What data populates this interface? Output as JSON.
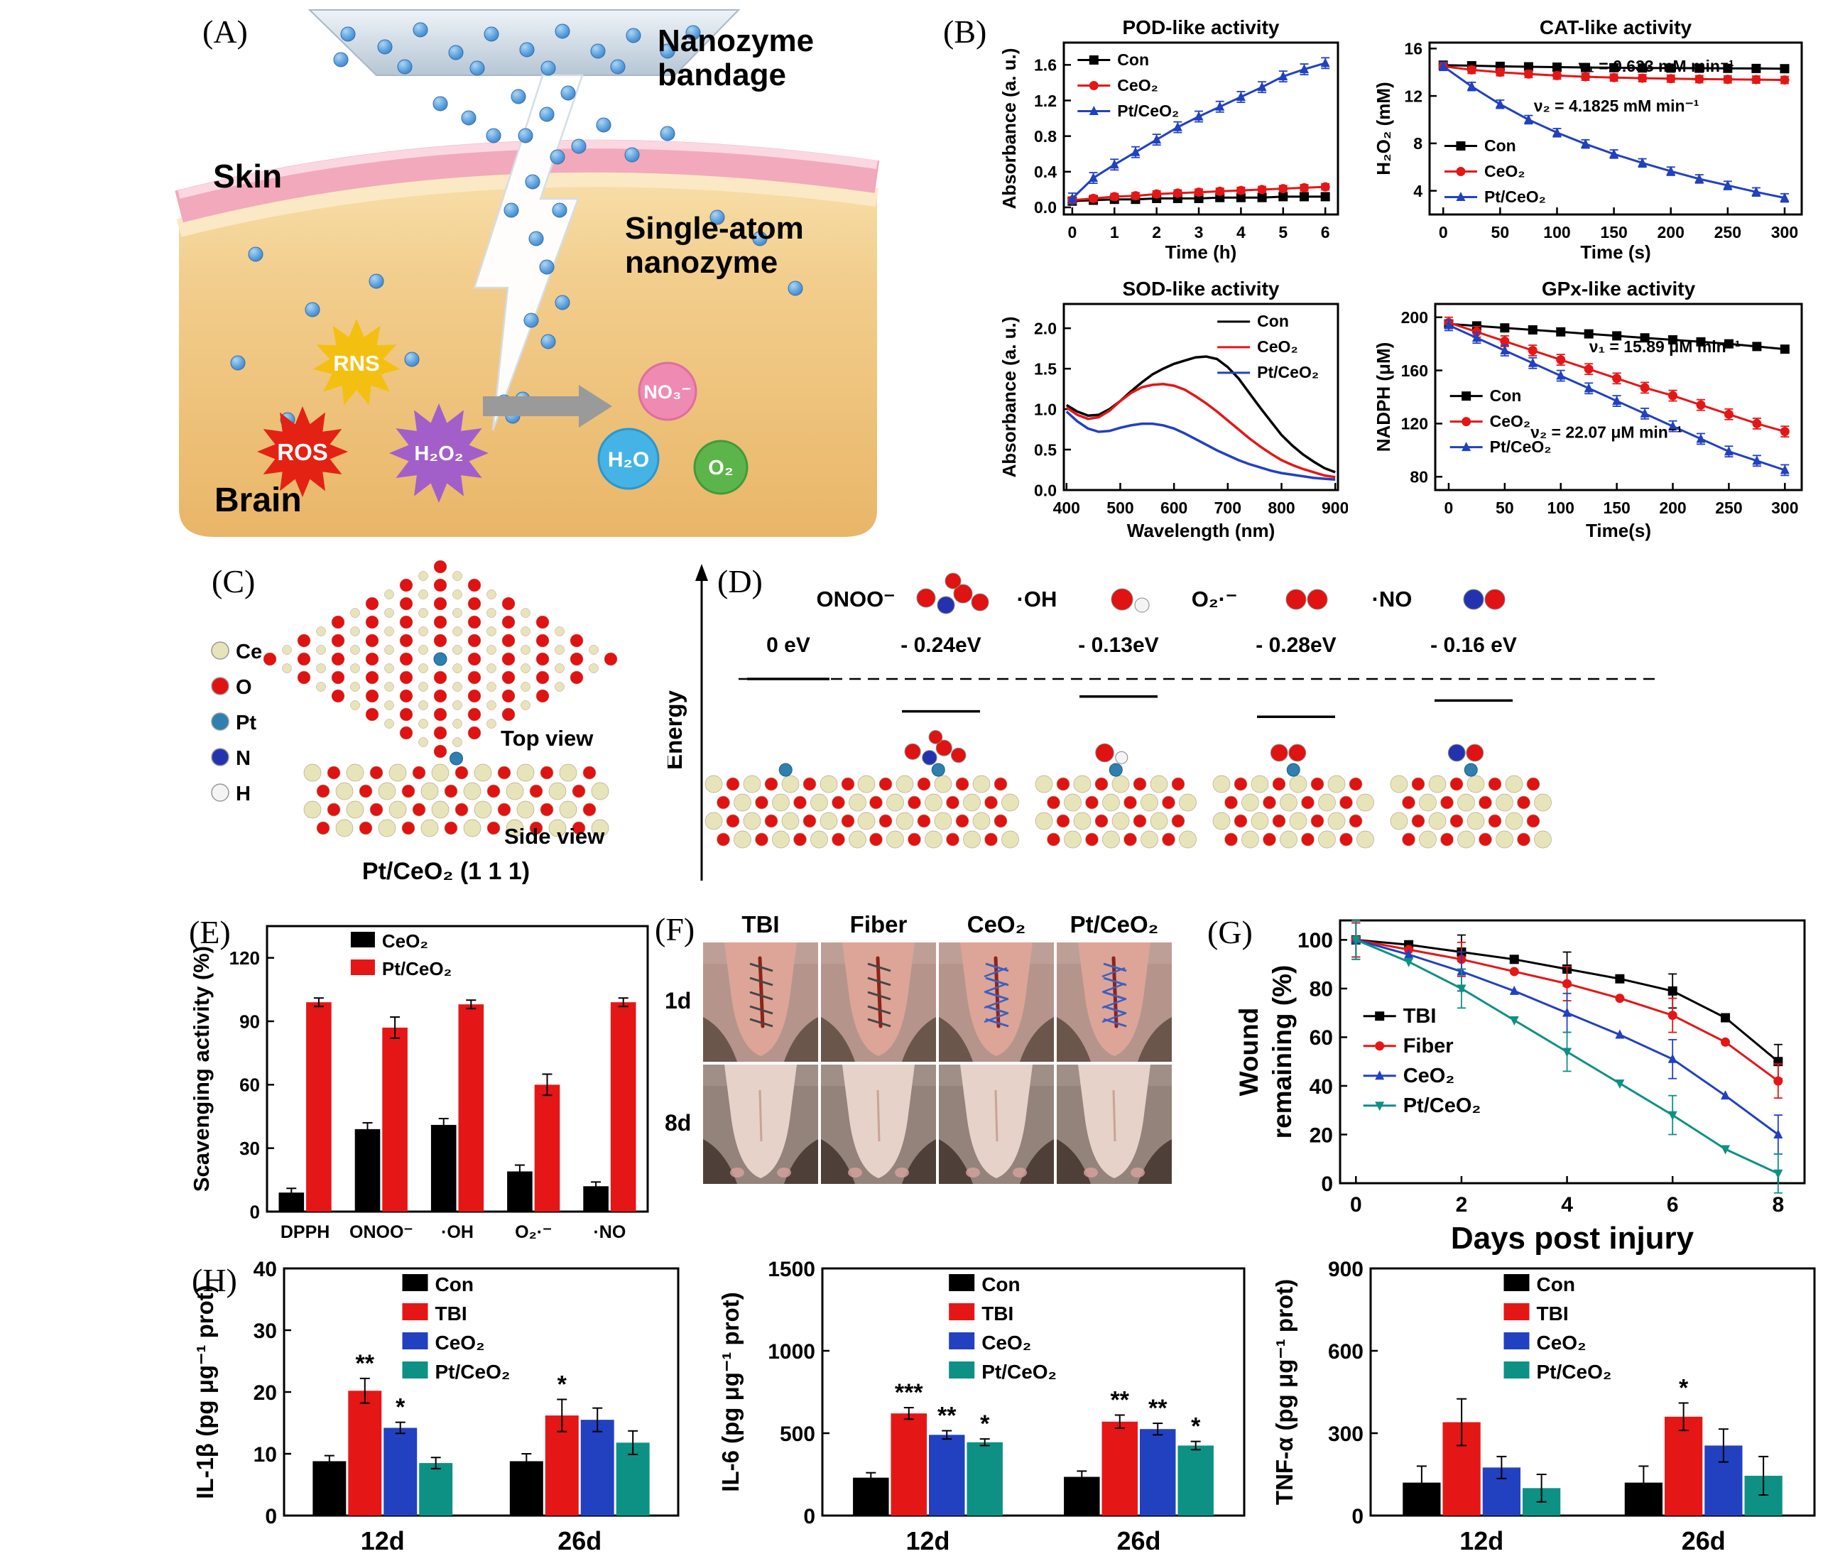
{
  "panels": {
    "a": {
      "label": "(A)",
      "bandage_line1": "Nanozyme",
      "bandage_line2": "bandage",
      "skin": "Skin",
      "single_atom_line1": "Single-atom",
      "single_atom_line2": "nanozyme",
      "brain": "Brain",
      "burst_rns": "RNS",
      "burst_ros": "ROS",
      "burst_h2o2": "H₂O₂",
      "product_no3": "NO₃⁻",
      "product_h2o": "H₂O",
      "product_o2": "O₂"
    },
    "b": {
      "label": "(B)"
    },
    "c": {
      "label": "(C)",
      "atoms": [
        {
          "name": "Ce",
          "color": "#e8e4ba"
        },
        {
          "name": "O",
          "color": "#e01212"
        },
        {
          "name": "Pt",
          "color": "#2f7fb0"
        },
        {
          "name": "N",
          "color": "#2333b0"
        },
        {
          "name": "H",
          "color": "#f4f4f4"
        }
      ],
      "top_view": "Top view",
      "side_view": "Side view",
      "caption": "Pt/CeO₂ (1 1 1)"
    },
    "d": {
      "label": "(D)",
      "energy_axis": "Energy",
      "baseline": "0 eV",
      "species": [
        {
          "label": "ONOO⁻",
          "energy": "- 0.24eV",
          "value": -0.24
        },
        {
          "label": "·OH",
          "energy": "- 0.13eV",
          "value": -0.13
        },
        {
          "label": "O₂·⁻",
          "energy": "- 0.28eV",
          "value": -0.28
        },
        {
          "label": "·NO",
          "energy": "- 0.16 eV",
          "value": -0.16
        }
      ]
    },
    "e": {
      "label": "(E)"
    },
    "f": {
      "label": "(F)",
      "columns": [
        "TBI",
        "Fiber",
        "CeO₂",
        "Pt/CeO₂"
      ],
      "rows": [
        "1d",
        "8d"
      ]
    },
    "g": {
      "label": "(G)"
    },
    "h": {
      "label": "(H)"
    }
  },
  "chart_data": [
    {
      "id": "pod",
      "type": "line",
      "title": "POD-like activity",
      "xlabel": "Time (h)",
      "ylabel": "Absorbance (a. u.)",
      "xlim": [
        -0.2,
        6.3
      ],
      "ylim": [
        -0.08,
        1.85
      ],
      "xticks": [
        0,
        1,
        2,
        3,
        4,
        5,
        6
      ],
      "yticks": [
        0,
        0.4,
        0.8,
        1.2,
        1.6
      ],
      "ydec": 1,
      "x": [
        0,
        0.5,
        1,
        1.5,
        2,
        2.5,
        3,
        3.5,
        4,
        4.5,
        5,
        5.5,
        6
      ],
      "legend": {
        "fx": 0.05,
        "fy": 0.02
      },
      "m": {
        "l": 100,
        "t": 42,
        "r": 14,
        "b": 74
      },
      "series": [
        {
          "name": "Con",
          "color": "#000000",
          "marker": "sq",
          "err": 0.03,
          "y": [
            0.07,
            0.08,
            0.09,
            0.09,
            0.1,
            0.1,
            0.1,
            0.11,
            0.11,
            0.11,
            0.12,
            0.12,
            0.12
          ]
        },
        {
          "name": "CeO₂",
          "color": "#e51616",
          "marker": "ci",
          "err": 0.035,
          "y": [
            0.08,
            0.1,
            0.12,
            0.13,
            0.15,
            0.16,
            0.17,
            0.18,
            0.19,
            0.2,
            0.21,
            0.22,
            0.23
          ]
        },
        {
          "name": "Pt/CeO₂",
          "color": "#2141c1",
          "marker": "tu",
          "err": 0.06,
          "y": [
            0.1,
            0.33,
            0.48,
            0.62,
            0.76,
            0.9,
            1.02,
            1.13,
            1.24,
            1.35,
            1.47,
            1.55,
            1.62
          ]
        }
      ]
    },
    {
      "id": "cat",
      "type": "line",
      "title": "CAT-like activity",
      "xlabel": "Time (s)",
      "ylabel": "H₂O₂ (mM)",
      "xlim": [
        -12,
        315
      ],
      "ylim": [
        2,
        16.5
      ],
      "xticks": [
        0,
        50,
        100,
        150,
        200,
        250,
        300
      ],
      "yticks": [
        4,
        8,
        12,
        16
      ],
      "x": [
        0,
        25,
        50,
        75,
        100,
        125,
        150,
        175,
        200,
        225,
        250,
        275,
        300
      ],
      "legend": {
        "fx": 0.04,
        "fy": 0.52
      },
      "m": {
        "l": 88,
        "t": 42,
        "r": 18,
        "b": 74
      },
      "annotations": [
        {
          "text": "ν₁ = 0.633 mM min⁻¹",
          "color": "#e51616",
          "fx": 0.4,
          "fy": 0.17
        },
        {
          "text": "ν₂ = 4.1825 mM min⁻¹",
          "color": "#2141c1",
          "fx": 0.28,
          "fy": 0.4
        }
      ],
      "series": [
        {
          "name": "Con",
          "color": "#000000",
          "marker": "sq",
          "err": 0.25,
          "y": [
            14.6,
            14.55,
            14.5,
            14.46,
            14.43,
            14.4,
            14.38,
            14.36,
            14.35,
            14.34,
            14.33,
            14.32,
            14.3
          ]
        },
        {
          "name": "CeO₂",
          "color": "#e51616",
          "marker": "ci",
          "err": 0.3,
          "y": [
            14.5,
            14.2,
            14.0,
            13.85,
            13.72,
            13.62,
            13.55,
            13.5,
            13.46,
            13.42,
            13.4,
            13.38,
            13.35
          ]
        },
        {
          "name": "Pt/CeO₂",
          "color": "#2141c1",
          "marker": "tu",
          "err": 0.35,
          "y": [
            14.5,
            12.8,
            11.3,
            10.0,
            8.9,
            7.95,
            7.1,
            6.35,
            5.65,
            5.0,
            4.45,
            3.9,
            3.4
          ]
        }
      ]
    },
    {
      "id": "sod",
      "type": "line",
      "title": "SOD-like activity",
      "xlabel": "Wavelength (nm)",
      "ylabel": "Absorbance (a. u.)",
      "xlim": [
        395,
        905
      ],
      "ylim": [
        0,
        2.3
      ],
      "xticks": [
        400,
        500,
        600,
        700,
        800,
        900
      ],
      "yticks": [
        0,
        0.5,
        1,
        1.5,
        2
      ],
      "ydec": 1,
      "x": [
        400,
        420,
        440,
        460,
        480,
        500,
        520,
        540,
        560,
        580,
        600,
        620,
        640,
        660,
        680,
        700,
        720,
        740,
        760,
        780,
        800,
        820,
        840,
        860,
        880,
        900
      ],
      "legend": {
        "fx": 0.56,
        "fy": 0.02
      },
      "m": {
        "l": 100,
        "t": 42,
        "r": 14,
        "b": 78
      },
      "series": [
        {
          "name": "Con",
          "color": "#000000",
          "marker": "none",
          "lw": 3.5,
          "y": [
            1.05,
            0.97,
            0.92,
            0.93,
            1.0,
            1.1,
            1.22,
            1.33,
            1.43,
            1.5,
            1.56,
            1.6,
            1.64,
            1.65,
            1.62,
            1.52,
            1.38,
            1.2,
            1.02,
            0.85,
            0.68,
            0.55,
            0.44,
            0.35,
            0.27,
            0.22
          ]
        },
        {
          "name": "CeO₂",
          "color": "#e51616",
          "marker": "none",
          "lw": 3.5,
          "y": [
            1.02,
            0.93,
            0.88,
            0.9,
            0.98,
            1.1,
            1.2,
            1.27,
            1.3,
            1.31,
            1.29,
            1.24,
            1.16,
            1.07,
            0.97,
            0.86,
            0.75,
            0.64,
            0.54,
            0.45,
            0.37,
            0.31,
            0.26,
            0.22,
            0.18,
            0.16
          ]
        },
        {
          "name": "Pt/CeO₂",
          "color": "#2141c1",
          "marker": "none",
          "lw": 3.5,
          "y": [
            0.97,
            0.85,
            0.76,
            0.72,
            0.73,
            0.77,
            0.8,
            0.82,
            0.82,
            0.8,
            0.76,
            0.7,
            0.63,
            0.56,
            0.49,
            0.43,
            0.37,
            0.32,
            0.28,
            0.24,
            0.21,
            0.19,
            0.17,
            0.15,
            0.14,
            0.13
          ]
        }
      ]
    },
    {
      "id": "gpx",
      "type": "line",
      "title": "GPx-like activity",
      "xlabel": "Time(s)",
      "ylabel": "NADPH (μM)",
      "xlim": [
        -12,
        315
      ],
      "ylim": [
        70,
        210
      ],
      "xticks": [
        0,
        50,
        100,
        150,
        200,
        250,
        300
      ],
      "yticks": [
        80,
        120,
        160,
        200
      ],
      "x": [
        0,
        25,
        50,
        75,
        100,
        125,
        150,
        175,
        200,
        225,
        250,
        275,
        300
      ],
      "legend": {
        "fx": 0.04,
        "fy": 0.42
      },
      "m": {
        "l": 96,
        "t": 42,
        "r": 18,
        "b": 78
      },
      "annotations": [
        {
          "text": "ν₁ = 15.89 μM min⁻¹",
          "color": "#e51616",
          "fx": 0.42,
          "fy": 0.26
        },
        {
          "text": "ν₂ = 22.07 μM min⁻¹",
          "color": "#2141c1",
          "fx": 0.26,
          "fy": 0.72
        }
      ],
      "series": [
        {
          "name": "Con",
          "color": "#000000",
          "marker": "sq",
          "err": 2.5,
          "y": [
            195,
            193.5,
            192,
            190.5,
            189,
            187.5,
            186,
            184.5,
            183,
            181.5,
            180,
            178,
            176
          ]
        },
        {
          "name": "CeO₂",
          "color": "#e51616",
          "marker": "ci",
          "err": 4,
          "y": [
            196,
            189,
            182,
            175,
            168,
            161,
            154,
            147,
            141,
            134,
            127,
            120,
            114
          ]
        },
        {
          "name": "Pt/CeO₂",
          "color": "#2141c1",
          "marker": "tu",
          "err": 4,
          "y": [
            194,
            184.5,
            175,
            165.5,
            156,
            146.5,
            137,
            127.5,
            118,
            108.5,
            99,
            92,
            85
          ]
        }
      ]
    },
    {
      "id": "scav",
      "type": "bar",
      "ylabel": "Scavenging activity (%)",
      "categories": [
        "DPPH",
        "ONOO⁻",
        "·OH",
        "O₂·⁻",
        "·NO"
      ],
      "ylim": [
        0,
        135
      ],
      "yticks": [
        0,
        30,
        60,
        90,
        120
      ],
      "legend": {
        "fx": 0.22,
        "fy": 0.0
      },
      "m": {
        "l": 114,
        "t": 16,
        "r": 10,
        "b": 60
      },
      "fs": {
        "tick": 26,
        "label": 31,
        "leg": 26,
        "cat": 25
      },
      "series": [
        {
          "name": "CeO₂",
          "color": "#000000",
          "values": [
            9,
            39,
            41,
            19,
            12
          ],
          "errors": [
            2,
            3,
            3,
            3,
            2
          ]
        },
        {
          "name": "Pt/CeO₂",
          "color": "#e51616",
          "values": [
            99,
            87,
            98,
            60,
            99
          ],
          "errors": [
            2,
            5,
            2,
            5,
            2
          ]
        }
      ]
    },
    {
      "id": "wound",
      "type": "line",
      "xlabel": "Days post injury",
      "ylabel": "Wound",
      "ylabel2": "remaining (%)",
      "xlim": [
        -0.3,
        8.5
      ],
      "ylim": [
        0,
        108
      ],
      "xticks": [
        0,
        2,
        4,
        6,
        8
      ],
      "yticks": [
        0,
        20,
        40,
        60,
        80,
        100
      ],
      "x": [
        0,
        1,
        2,
        3,
        4,
        5,
        6,
        7,
        8
      ],
      "legend": {
        "fx": 0.05,
        "fy": 0.3
      },
      "m": {
        "l": 152,
        "t": 18,
        "r": 22,
        "b": 104
      },
      "fs": {
        "tick": 30,
        "label": 37,
        "leg": 29,
        "xlabel": 44
      },
      "series": [
        {
          "name": "TBI",
          "color": "#000000",
          "marker": "sq",
          "err": 7,
          "errEvery": 2,
          "y": [
            100,
            98,
            95,
            92,
            88,
            84,
            79,
            68,
            50
          ]
        },
        {
          "name": "Fiber",
          "color": "#e51616",
          "marker": "ci",
          "err": 7,
          "errEvery": 2,
          "y": [
            100,
            96,
            92,
            87,
            82,
            76,
            69,
            58,
            42
          ]
        },
        {
          "name": "CeO₂",
          "color": "#2141c1",
          "marker": "tu",
          "err": 8,
          "errEvery": 2,
          "y": [
            100,
            94,
            87,
            79,
            70,
            61,
            51,
            36,
            20
          ]
        },
        {
          "name": "Pt/CeO₂",
          "color": "#0d9184",
          "marker": "td",
          "err": 8,
          "errEvery": 2,
          "y": [
            100,
            91,
            80,
            67,
            54,
            41,
            28,
            14,
            4
          ]
        }
      ]
    },
    {
      "id": "il1b",
      "type": "bar",
      "ylabel": "IL-1β (pg μg⁻¹ prot)",
      "categories": [
        "12d",
        "26d"
      ],
      "ylim": [
        0,
        40
      ],
      "yticks": [
        0,
        10,
        20,
        30,
        40
      ],
      "legend": {
        "fx": 0.3,
        "fy": 0.0
      },
      "m": {
        "l": 132,
        "t": 14,
        "r": 8,
        "b": 70
      },
      "fs": {
        "tick": 30,
        "label": 33,
        "leg": 28,
        "cat": 36
      },
      "series": [
        {
          "name": "Con",
          "color": "#000000",
          "values": [
            8.8,
            8.8
          ],
          "errors": [
            0.9,
            1.2
          ],
          "sig": [
            "",
            ""
          ]
        },
        {
          "name": "TBI",
          "color": "#e51616",
          "values": [
            20.2,
            16.2
          ],
          "errors": [
            2.0,
            2.6
          ],
          "sig": [
            "**",
            "*"
          ]
        },
        {
          "name": "CeO₂",
          "color": "#2141c1",
          "values": [
            14.2,
            15.5
          ],
          "errors": [
            0.9,
            1.9
          ],
          "sig": [
            "*",
            ""
          ]
        },
        {
          "name": "Pt/CeO₂",
          "color": "#0d9184",
          "values": [
            8.5,
            11.8
          ],
          "errors": [
            0.9,
            1.9
          ],
          "sig": [
            "",
            ""
          ]
        }
      ]
    },
    {
      "id": "il6",
      "type": "bar",
      "ylabel": "IL-6 (pg μg⁻¹ prot)",
      "categories": [
        "12d",
        "26d"
      ],
      "ylim": [
        0,
        1500
      ],
      "yticks": [
        0,
        500,
        1000,
        1500
      ],
      "legend": {
        "fx": 0.3,
        "fy": 0.0
      },
      "m": {
        "l": 150,
        "t": 14,
        "r": 8,
        "b": 70
      },
      "fs": {
        "tick": 30,
        "label": 33,
        "leg": 28,
        "cat": 36
      },
      "series": [
        {
          "name": "Con",
          "color": "#000000",
          "values": [
            230,
            235
          ],
          "errors": [
            30,
            35
          ],
          "sig": [
            "",
            ""
          ]
        },
        {
          "name": "TBI",
          "color": "#e51616",
          "values": [
            620,
            570
          ],
          "errors": [
            35,
            40
          ],
          "sig": [
            "***",
            "**"
          ]
        },
        {
          "name": "CeO₂",
          "color": "#2141c1",
          "values": [
            490,
            525
          ],
          "errors": [
            25,
            35
          ],
          "sig": [
            "**",
            "**"
          ]
        },
        {
          "name": "Pt/CeO₂",
          "color": "#0d9184",
          "values": [
            445,
            425
          ],
          "errors": [
            20,
            25
          ],
          "sig": [
            "*",
            "*"
          ]
        }
      ]
    },
    {
      "id": "tnfa",
      "type": "bar",
      "ylabel": "TNF-α (pg μg⁻¹ prot)",
      "categories": [
        "12d",
        "26d"
      ],
      "ylim": [
        0,
        900
      ],
      "yticks": [
        0,
        300,
        600,
        900
      ],
      "legend": {
        "fx": 0.3,
        "fy": 0.0
      },
      "m": {
        "l": 142,
        "t": 14,
        "r": 8,
        "b": 70
      },
      "fs": {
        "tick": 30,
        "label": 33,
        "leg": 28,
        "cat": 36
      },
      "series": [
        {
          "name": "Con",
          "color": "#000000",
          "values": [
            120,
            120
          ],
          "errors": [
            60,
            60
          ],
          "sig": [
            "",
            ""
          ]
        },
        {
          "name": "TBI",
          "color": "#e51616",
          "values": [
            340,
            360
          ],
          "errors": [
            85,
            50
          ],
          "sig": [
            "",
            "*"
          ]
        },
        {
          "name": "CeO₂",
          "color": "#2141c1",
          "values": [
            175,
            255
          ],
          "errors": [
            40,
            60
          ],
          "sig": [
            "",
            ""
          ]
        },
        {
          "name": "Pt/CeO₂",
          "color": "#0d9184",
          "values": [
            100,
            145
          ],
          "errors": [
            50,
            70
          ],
          "sig": [
            "",
            ""
          ]
        }
      ]
    }
  ]
}
